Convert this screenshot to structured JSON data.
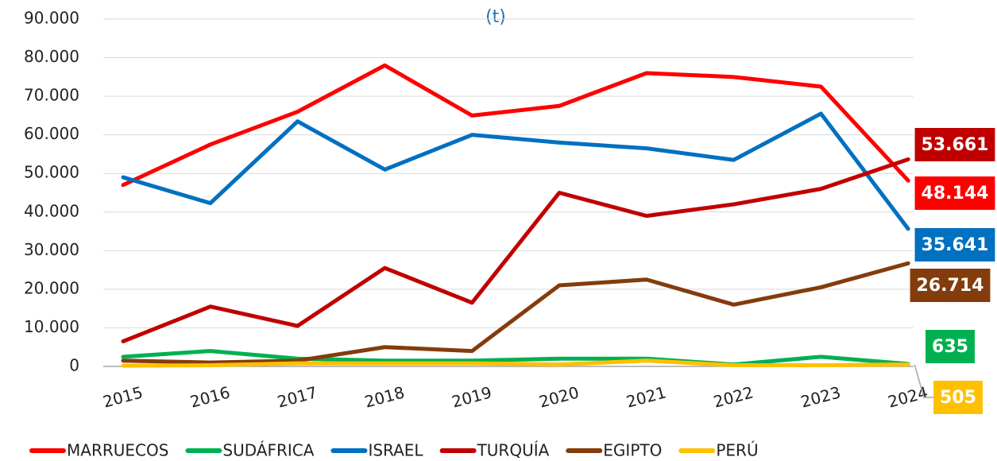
{
  "chart_data": {
    "type": "line",
    "title": "(t)",
    "categories": [
      "2015",
      "2016",
      "2017",
      "2018",
      "2019",
      "2020",
      "2021",
      "2022",
      "2023",
      "2024"
    ],
    "series": [
      {
        "name": "MARRUECOS",
        "color": "#ff0000",
        "values": [
          47000,
          57500,
          66000,
          78000,
          65000,
          67500,
          76000,
          75000,
          72500,
          48144
        ],
        "value_labels": [
          null,
          null,
          null,
          null,
          null,
          null,
          null,
          null,
          null,
          "48.144"
        ]
      },
      {
        "name": "SUDÁFRICA",
        "color": "#00b050",
        "values": [
          2500,
          4000,
          2000,
          1500,
          1500,
          2000,
          2000,
          500,
          2500,
          635
        ],
        "value_labels": [
          null,
          null,
          null,
          null,
          null,
          null,
          null,
          null,
          null,
          "635"
        ]
      },
      {
        "name": "ISRAEL",
        "color": "#0070c0",
        "values": [
          49000,
          42300,
          63500,
          51000,
          60000,
          58000,
          56500,
          53500,
          65500,
          35641
        ],
        "value_labels": [
          null,
          null,
          null,
          null,
          null,
          null,
          null,
          null,
          null,
          "35.641"
        ]
      },
      {
        "name": "TURQUÍA",
        "color": "#c00000",
        "values": [
          6500,
          15500,
          10500,
          25500,
          16500,
          45000,
          39000,
          42000,
          46000,
          53661
        ],
        "value_labels": [
          null,
          null,
          null,
          null,
          null,
          null,
          null,
          null,
          null,
          "53.661"
        ]
      },
      {
        "name": "EGIPTO",
        "color": "#843c0c",
        "values": [
          1500,
          1000,
          1500,
          5000,
          4000,
          21000,
          22500,
          16000,
          20500,
          26714
        ],
        "value_labels": [
          null,
          null,
          null,
          null,
          null,
          null,
          null,
          null,
          null,
          "26.714"
        ]
      },
      {
        "name": "PERÚ",
        "color": "#ffc000",
        "values": [
          200,
          300,
          800,
          800,
          800,
          500,
          1500,
          300,
          300,
          505
        ],
        "value_labels": [
          null,
          null,
          null,
          null,
          null,
          null,
          null,
          null,
          null,
          "505"
        ]
      }
    ],
    "ylim": [
      0,
      90000
    ],
    "yticks": [
      0,
      {
        "value": 10000,
        "label": "10.000"
      },
      {
        "value": 20000,
        "label": "20.000"
      },
      {
        "value": 30000,
        "label": "30.000"
      },
      {
        "value": 40000,
        "label": "40.000"
      },
      {
        "value": 50000,
        "label": "50.000"
      },
      {
        "value": 60000,
        "label": "60.000"
      },
      {
        "value": 70000,
        "label": "70.000"
      },
      {
        "value": 80000,
        "label": "80.000"
      },
      {
        "value": 90000,
        "label": "90.000"
      }
    ],
    "grid": true
  }
}
